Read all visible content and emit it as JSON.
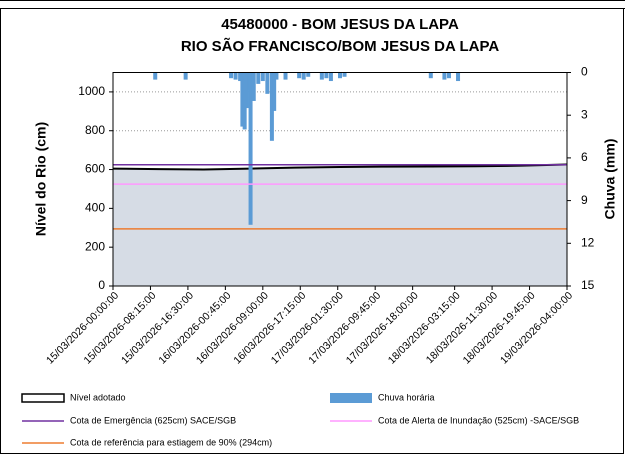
{
  "chart_data": {
    "type": "line",
    "title": "45480000 - BOM JESUS DA LAPA",
    "subtitle": "RIO SÃO FRANCISCO/BOM JESUS DA LAPA",
    "y_label": "Nível do Rio (cm)",
    "y2_label": "Chuva (mm)",
    "xlim": [
      0,
      100
    ],
    "xticks": [
      {
        "value": 0,
        "label": "15/03/2026-00:00:00"
      },
      {
        "value": 8.25,
        "label": "15/03/2026-08:15:00"
      },
      {
        "value": 16.5,
        "label": "15/03/2026-16:30:00"
      },
      {
        "value": 24.75,
        "label": "16/03/2026-00:45:00"
      },
      {
        "value": 33,
        "label": "16/03/2026-09:00:00"
      },
      {
        "value": 41.25,
        "label": "16/03/2026-17:15:00"
      },
      {
        "value": 49.5,
        "label": "17/03/2026-01:30:00"
      },
      {
        "value": 57.75,
        "label": "17/03/2026-09:45:00"
      },
      {
        "value": 66,
        "label": "17/03/2026-18:00:00"
      },
      {
        "value": 75.25,
        "label": "18/03/2026-03:15:00"
      },
      {
        "value": 83.5,
        "label": "18/03/2026-11:30:00"
      },
      {
        "value": 91.75,
        "label": "18/03/2026-19:45:00"
      },
      {
        "value": 100,
        "label": "19/03/2026-04:00:00"
      }
    ],
    "ylim": [
      0,
      1100
    ],
    "yticks": [
      0,
      200,
      400,
      600,
      800,
      1000
    ],
    "y2lim": [
      0,
      15
    ],
    "y2_inverted": true,
    "y2ticks": [
      0,
      3,
      6,
      9,
      12,
      15
    ],
    "grid": true,
    "series": [
      {
        "name": "Nível adotado",
        "type": "area",
        "color": "#000000",
        "fill": "#d6dce5",
        "x": [
          0,
          10,
          20,
          30,
          40,
          50,
          60,
          70,
          80,
          90,
          100
        ],
        "values": [
          605,
          602,
          600,
          605,
          610,
          613,
          615,
          616,
          617,
          620,
          626
        ]
      },
      {
        "name": "Chuva horária",
        "type": "bar",
        "axis": "y2",
        "color": "#5b9bd5",
        "x": [
          9.3,
          16,
          26,
          27,
          28,
          28.5,
          29,
          29.5,
          30,
          30.3,
          31,
          32,
          33,
          34,
          35,
          35.5,
          36,
          38,
          41,
          42,
          43,
          46,
          47,
          48,
          50,
          51,
          70,
          73,
          74,
          76
        ],
        "values": [
          0.5,
          0.5,
          0.4,
          0.5,
          0.6,
          3.8,
          4.0,
          2.5,
          1.2,
          10.7,
          2,
          0.8,
          0.6,
          1.5,
          4.8,
          2.7,
          0.5,
          0.5,
          0.4,
          0.5,
          0.3,
          0.5,
          0.4,
          0.6,
          0.4,
          0.3,
          0.4,
          0.5,
          0.4,
          0.6
        ]
      }
    ],
    "reference_lines": [
      {
        "name": "Cota de Emergência   (625cm) SACE/SGB",
        "value": 625,
        "color": "#7030a0"
      },
      {
        "name": "Cota de Alerta  de Inundação (525cm) -SACE/SGB",
        "value": 525,
        "color": "#ff99ff"
      },
      {
        "name": "Cota de referência para  estiagem de 90% (294cm)",
        "value": 294,
        "color": "#ed7d31"
      }
    ]
  }
}
